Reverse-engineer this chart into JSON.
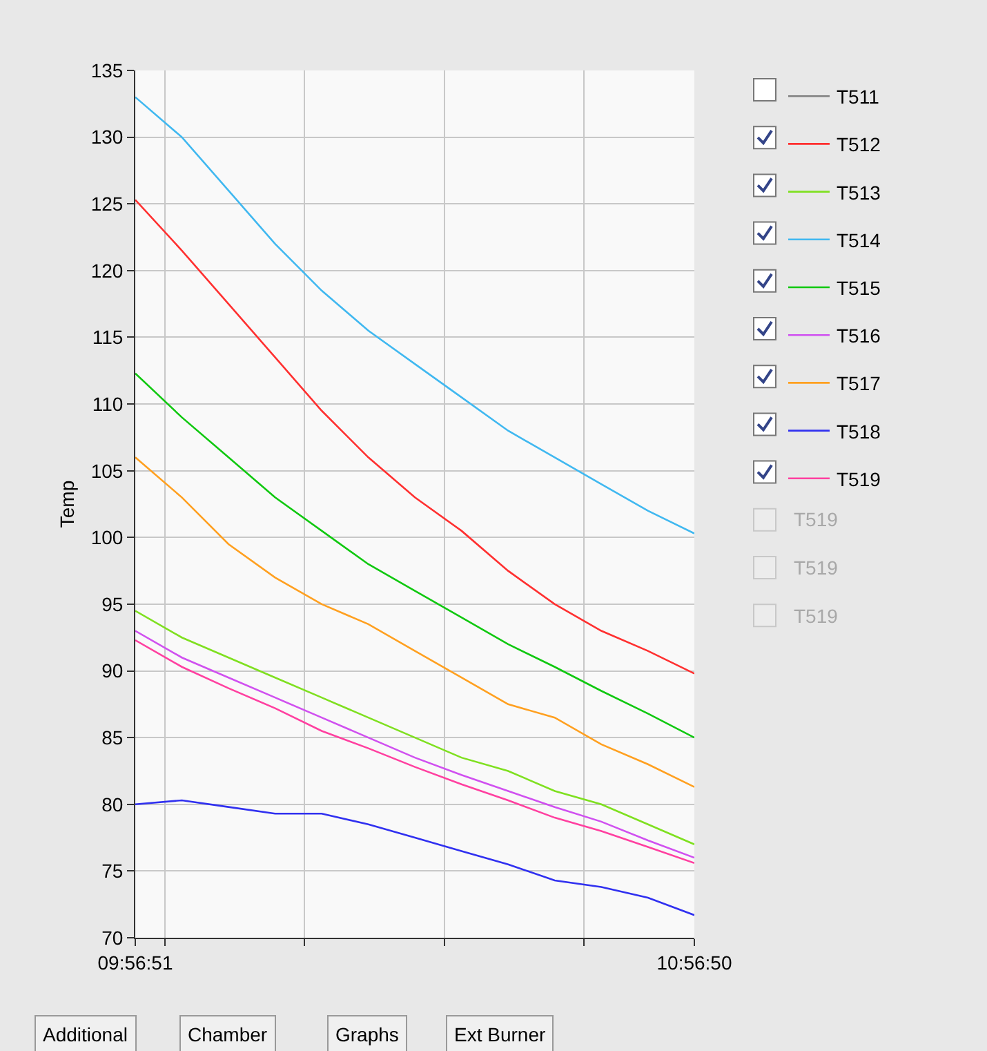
{
  "chart_data": {
    "type": "line",
    "ylabel": "Temp",
    "x": [
      9.9475,
      10.0308,
      10.1142,
      10.1975,
      10.2808,
      10.3642,
      10.4475,
      10.5308,
      10.6142,
      10.6975,
      10.7808,
      10.8642,
      10.9472
    ],
    "xlim": [
      9.9475,
      10.9472
    ],
    "xticks": [
      {
        "value": 9.9475,
        "label": "09:56:51"
      },
      {
        "value": 10.0,
        "label": null
      },
      {
        "value": 10.25,
        "label": null
      },
      {
        "value": 10.5,
        "label": null
      },
      {
        "value": 10.75,
        "label": null
      },
      {
        "value": 10.9472,
        "label": "10:56:50"
      }
    ],
    "ylim": [
      70,
      135
    ],
    "yticks": [
      70,
      75,
      80,
      85,
      90,
      95,
      100,
      105,
      110,
      115,
      120,
      125,
      130,
      135
    ],
    "grid": true,
    "legend": "right",
    "marker": "none",
    "line_style": "solid",
    "series": [
      {
        "name": "T511",
        "color": "#808080",
        "values": [
          null,
          null,
          null,
          null,
          null,
          null,
          null,
          null,
          null,
          null,
          null,
          null,
          null
        ]
      },
      {
        "name": "T512",
        "color": "#ff3030",
        "values": [
          125.3,
          121.5,
          117.5,
          113.5,
          109.5,
          106,
          103,
          100.5,
          97.5,
          95,
          93,
          91.5,
          89.8
        ]
      },
      {
        "name": "T513",
        "color": "#7fe020",
        "values": [
          94.5,
          92.5,
          91,
          89.5,
          88,
          86.5,
          85,
          83.5,
          82.5,
          81,
          80,
          78.5,
          77
        ]
      },
      {
        "name": "T514",
        "color": "#40b8f0",
        "values": [
          133,
          130,
          126,
          122,
          118.5,
          115.5,
          113,
          110.5,
          108,
          106,
          104,
          102,
          100.3
        ]
      },
      {
        "name": "T515",
        "color": "#10c810",
        "values": [
          112.3,
          109,
          106,
          103,
          100.5,
          98,
          96,
          94,
          92,
          90.3,
          88.5,
          86.8,
          85
        ]
      },
      {
        "name": "T516",
        "color": "#d050f0",
        "values": [
          93,
          91,
          89.5,
          88,
          86.5,
          85,
          83.5,
          82.2,
          81,
          79.8,
          78.7,
          77.3,
          76
        ]
      },
      {
        "name": "T517",
        "color": "#ffa020",
        "values": [
          106,
          103,
          99.5,
          97,
          95,
          93.5,
          91.5,
          89.5,
          87.5,
          86.5,
          84.5,
          83,
          81.3
        ]
      },
      {
        "name": "T518",
        "color": "#3030f0",
        "values": [
          80,
          80.3,
          79.8,
          79.3,
          79.3,
          78.5,
          77.5,
          76.5,
          75.5,
          74.3,
          73.8,
          73,
          71.7
        ]
      },
      {
        "name": "T519",
        "color": "#ff40a0",
        "values": [
          92.3,
          90.3,
          88.7,
          87.2,
          85.5,
          84.2,
          82.8,
          81.5,
          80.3,
          79,
          78,
          76.8,
          75.6
        ]
      }
    ],
    "annotations": [
      "T519",
      "T519",
      "T519",
      "Additional",
      "Chamber",
      "Graphs",
      "Ext Burner"
    ]
  }
}
